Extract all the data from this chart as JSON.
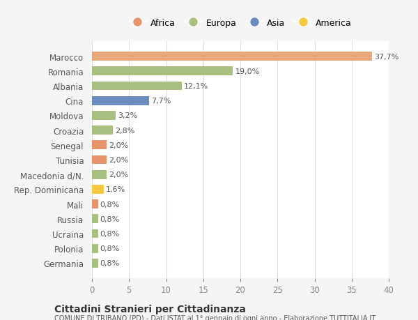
{
  "categories": [
    "Germania",
    "Polonia",
    "Ucraina",
    "Russia",
    "Mali",
    "Rep. Dominicana",
    "Macedonia d/N.",
    "Tunisia",
    "Senegal",
    "Croazia",
    "Moldova",
    "Cina",
    "Albania",
    "Romania",
    "Marocco"
  ],
  "values": [
    0.8,
    0.8,
    0.8,
    0.8,
    0.8,
    1.6,
    2.0,
    2.0,
    2.0,
    2.8,
    3.2,
    7.7,
    12.1,
    19.0,
    37.7
  ],
  "colors": [
    "#a8c080",
    "#a8c080",
    "#a8c080",
    "#a8c080",
    "#e8956d",
    "#f5c842",
    "#a8c080",
    "#e8956d",
    "#e8956d",
    "#a8c080",
    "#a8c080",
    "#6b8cbf",
    "#a8c080",
    "#a8c080",
    "#e8a87c"
  ],
  "labels": [
    "0,8%",
    "0,8%",
    "0,8%",
    "0,8%",
    "0,8%",
    "1,6%",
    "2,0%",
    "2,0%",
    "2,0%",
    "2,8%",
    "3,2%",
    "7,7%",
    "12,1%",
    "19,0%",
    "37,7%"
  ],
  "legend": [
    {
      "label": "Africa",
      "color": "#e8956d"
    },
    {
      "label": "Europa",
      "color": "#a8c080"
    },
    {
      "label": "Asia",
      "color": "#6b8cbf"
    },
    {
      "label": "America",
      "color": "#f5c842"
    }
  ],
  "xlim": [
    0,
    40
  ],
  "xticks": [
    0,
    5,
    10,
    15,
    20,
    25,
    30,
    35,
    40
  ],
  "title": "Cittadini Stranieri per Cittadinanza",
  "subtitle": "COMUNE DI TRIBANO (PD) - Dati ISTAT al 1° gennaio di ogni anno - Elaborazione TUTTITALIA.IT",
  "background_color": "#f5f5f5",
  "plot_bg_color": "#ffffff"
}
